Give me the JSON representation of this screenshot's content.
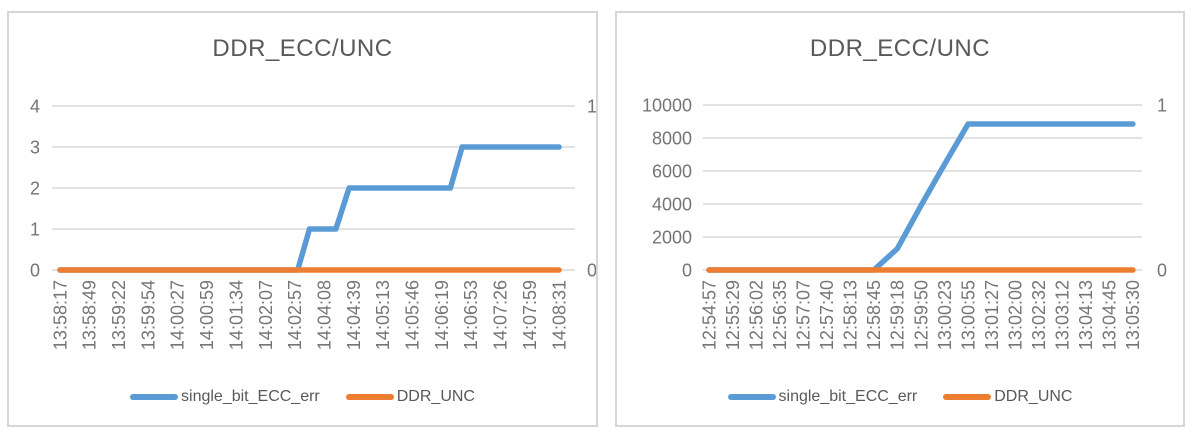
{
  "theme": {
    "card_border": "#D6D6D6",
    "gridline": "#D9D9D9",
    "title_color": "#595959",
    "tick_color": "#757575",
    "legend_color": "#595959",
    "series_blue": "#5B9BD5",
    "series_orange": "#ED7D31"
  },
  "chart_data": [
    {
      "type": "line",
      "title": "DDR_ECC/UNC",
      "grid": true,
      "legend_position": "bottom",
      "left_axis": {
        "min": 0,
        "max": 4,
        "ticks": [
          4,
          3,
          2,
          1,
          0
        ]
      },
      "right_axis": {
        "min": 0,
        "max": 1,
        "ticks": [
          1,
          0
        ]
      },
      "categories": [
        "13:58:17",
        "13:58:49",
        "13:59:22",
        "13:59:54",
        "14:00:27",
        "14:00:59",
        "14:01:34",
        "14:02:07",
        "14:02:57",
        "14:04:08",
        "14:04:39",
        "14:05:13",
        "14:05:46",
        "14:06:19",
        "14:06:53",
        "14:07:26",
        "14:07:59",
        "14:08:31"
      ],
      "series": [
        {
          "name": "single_bit_ECC_err",
          "axis": "left",
          "color": "#5B9BD5",
          "values": [
            0,
            0,
            0,
            0,
            0,
            0,
            0,
            0,
            0,
            1,
            2,
            2,
            2,
            2,
            3,
            3,
            3,
            3
          ],
          "draw_points": [
            [
              0,
              0
            ],
            [
              8.1,
              0
            ],
            [
              8.5,
              1
            ],
            [
              9.4,
              1
            ],
            [
              9.85,
              2
            ],
            [
              13.3,
              2
            ],
            [
              13.7,
              3
            ],
            [
              17,
              3
            ]
          ]
        },
        {
          "name": "DDR_UNC",
          "axis": "right",
          "color": "#ED7D31",
          "values": [
            0,
            0,
            0,
            0,
            0,
            0,
            0,
            0,
            0,
            0,
            0,
            0,
            0,
            0,
            0,
            0,
            0,
            0
          ],
          "draw_points": [
            [
              0,
              0
            ],
            [
              17,
              0
            ]
          ]
        }
      ]
    },
    {
      "type": "line",
      "title": "DDR_ECC/UNC",
      "grid": true,
      "legend_position": "bottom",
      "left_axis": {
        "min": 0,
        "max": 10000,
        "ticks": [
          10000,
          8000,
          6000,
          4000,
          2000,
          0
        ]
      },
      "right_axis": {
        "min": 0,
        "max": 1,
        "ticks": [
          1,
          0
        ]
      },
      "categories": [
        "12:54:57",
        "12:55:29",
        "12:56:02",
        "12:56:35",
        "12:57:07",
        "12:57:40",
        "12:58:13",
        "12:58:45",
        "12:59:18",
        "12:59:50",
        "13:00:23",
        "13:00:55",
        "13:01:27",
        "13:02:00",
        "13:02:32",
        "13:03:12",
        "13:04:13",
        "13:04:45",
        "13:05:30"
      ],
      "series": [
        {
          "name": "single_bit_ECC_err",
          "axis": "left",
          "color": "#5B9BD5",
          "values": [
            0,
            0,
            0,
            0,
            0,
            0,
            0,
            0,
            1300,
            3900,
            6400,
            8850,
            8850,
            8850,
            8850,
            8850,
            8850,
            8850,
            8850
          ],
          "draw_points": [
            [
              0,
              0
            ],
            [
              7,
              0
            ],
            [
              8,
              1300
            ],
            [
              9,
              3900
            ],
            [
              10,
              6400
            ],
            [
              11,
              8850
            ],
            [
              18,
              8850
            ]
          ]
        },
        {
          "name": "DDR_UNC",
          "axis": "right",
          "color": "#ED7D31",
          "values": [
            0,
            0,
            0,
            0,
            0,
            0,
            0,
            0,
            0,
            0,
            0,
            0,
            0,
            0,
            0,
            0,
            0,
            0,
            0
          ],
          "draw_points": [
            [
              0,
              0
            ],
            [
              18,
              0
            ]
          ]
        }
      ]
    }
  ]
}
